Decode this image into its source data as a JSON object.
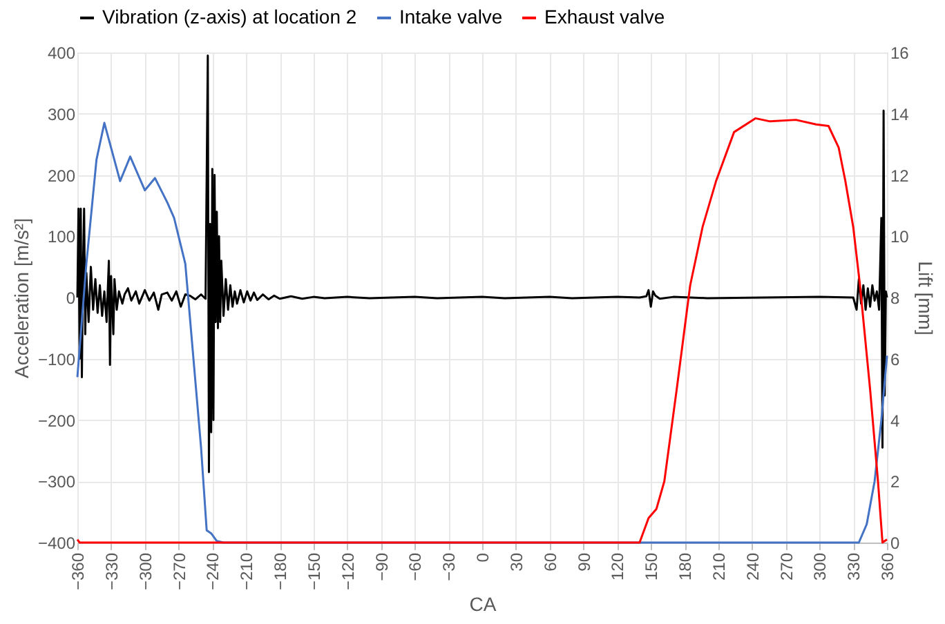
{
  "chart_data": {
    "type": "line",
    "xlabel": "CA",
    "ylabel": "Acceleration [m/s²]",
    "y2label": "Lift [mm]",
    "xlim": [
      -360,
      360
    ],
    "xticks": [
      -360,
      -330,
      -300,
      -270,
      -240,
      -210,
      -180,
      -150,
      -120,
      -90,
      -60,
      -30,
      0,
      30,
      60,
      90,
      120,
      150,
      180,
      210,
      240,
      270,
      300,
      330,
      360
    ],
    "ylim": [
      -400,
      400
    ],
    "yticks": [
      -400,
      -300,
      -200,
      -100,
      0,
      100,
      200,
      300,
      400
    ],
    "y2lim": [
      0,
      16
    ],
    "y2ticks": [
      0,
      2,
      4,
      6,
      8,
      10,
      12,
      14,
      16
    ],
    "grid": true,
    "legend": "top",
    "line_style": "solid",
    "marker": "none",
    "series": [
      {
        "name": "Vibration (z-axis) at location 2",
        "color": "#000000",
        "axis": "y",
        "x": [
          -360,
          -359,
          -358,
          -357,
          -356,
          -355,
          -354,
          -353,
          -352,
          -350,
          -348,
          -346,
          -344,
          -342,
          -340,
          -338,
          -336,
          -334,
          -332,
          -331,
          -330,
          -328,
          -327,
          -325,
          -323,
          -320,
          -318,
          -315,
          -312,
          -308,
          -305,
          -300,
          -296,
          -292,
          -288,
          -285,
          -280,
          -276,
          -272,
          -268,
          -264,
          -260,
          -255,
          -250,
          -246,
          -244,
          -243,
          -242,
          -241,
          -240,
          -239,
          -238,
          -237,
          -236,
          -235,
          -234,
          -233,
          -232,
          -230,
          -228,
          -226,
          -224,
          -222,
          -220,
          -218,
          -215,
          -212,
          -209,
          -206,
          -203,
          -200,
          -195,
          -190,
          -185,
          -180,
          -170,
          -160,
          -150,
          -140,
          -120,
          -100,
          -80,
          -60,
          -40,
          -20,
          0,
          20,
          40,
          60,
          80,
          100,
          120,
          140,
          146,
          148,
          150,
          152,
          154,
          158,
          170,
          200,
          250,
          300,
          330,
          333,
          335,
          337,
          339,
          341,
          343,
          345,
          347,
          349,
          351,
          353,
          355,
          356,
          357,
          358,
          359,
          360
        ],
        "values": [
          0,
          145,
          -100,
          145,
          -130,
          50,
          145,
          -60,
          40,
          -40,
          50,
          -20,
          30,
          -25,
          20,
          -30,
          10,
          -40,
          60,
          -110,
          35,
          -60,
          30,
          -20,
          10,
          -10,
          5,
          15,
          -5,
          10,
          -10,
          12,
          -5,
          8,
          -20,
          5,
          8,
          -5,
          10,
          -15,
          5,
          3,
          -3,
          5,
          -2,
          395,
          -285,
          120,
          -220,
          210,
          -200,
          200,
          -40,
          140,
          -50,
          100,
          -40,
          60,
          -30,
          30,
          -20,
          20,
          -15,
          10,
          -10,
          12,
          -8,
          10,
          -5,
          8,
          -4,
          5,
          -3,
          3,
          -2,
          2,
          -2,
          1,
          -1,
          1,
          -1,
          0,
          1,
          -1,
          0,
          1,
          -1,
          0,
          1,
          -1,
          0,
          1,
          0,
          2,
          12,
          -15,
          10,
          3,
          -2,
          1,
          -1,
          0,
          1,
          0,
          -20,
          30,
          -10,
          20,
          -20,
          15,
          -15,
          20,
          -5,
          10,
          -20,
          130,
          -245,
          305,
          -160,
          10,
          0
        ]
      },
      {
        "name": "Intake valve",
        "color": "#4472c4",
        "axis": "y2",
        "x": [
          -360,
          -352,
          -343,
          -336,
          -322,
          -313,
          -300,
          -291,
          -280,
          -274,
          -264,
          -257,
          -250,
          -245,
          -241,
          -236,
          -230,
          335,
          342,
          349,
          355,
          360
        ],
        "values": [
          5.4,
          9.1,
          12.5,
          13.7,
          11.8,
          12.6,
          11.5,
          11.9,
          11.1,
          10.6,
          9.1,
          6.1,
          3.1,
          0.4,
          0.3,
          0.05,
          0,
          0,
          0.6,
          2,
          4,
          6.1
        ]
      },
      {
        "name": "Exhaust valve",
        "color": "#ff0000",
        "axis": "y2",
        "x": [
          -360,
          -358,
          -355,
          140,
          148,
          155,
          162,
          173,
          185,
          196,
          208,
          224,
          243,
          256,
          279,
          297,
          308,
          317,
          323,
          330,
          336,
          345,
          352,
          356,
          360
        ],
        "values": [
          0.1,
          0,
          0,
          0,
          0.8,
          1.1,
          2,
          5,
          8.4,
          10.3,
          11.8,
          13.4,
          13.85,
          13.75,
          13.8,
          13.65,
          13.6,
          12.9,
          11.8,
          10.3,
          8.4,
          5,
          2,
          0,
          0.1
        ]
      }
    ]
  }
}
